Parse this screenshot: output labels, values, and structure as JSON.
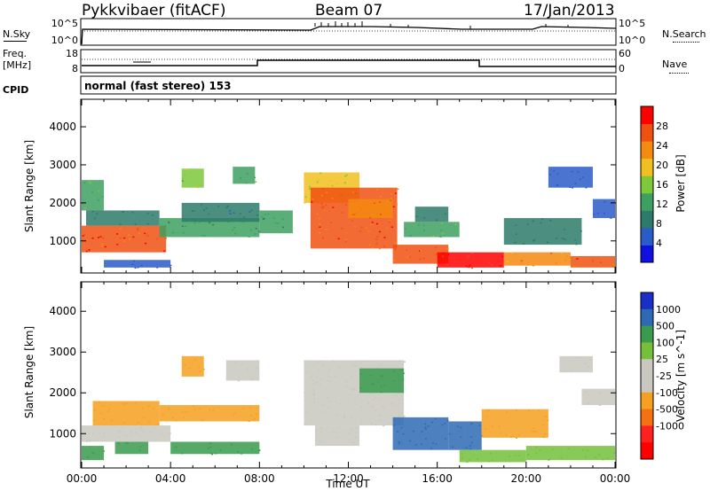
{
  "header": {
    "station": "Pykkvibaer (fitACF)",
    "beam": "Beam 07",
    "date": "17/Jan/2013"
  },
  "strip": {
    "nsky_label": "N.Sky",
    "nsearch_label": "N.Search",
    "freq_label": "Freq.",
    "freq_unit": "[MHz]",
    "nave_label": "Nave",
    "cpid_label": "CPID",
    "cpid_text": "normal (fast stereo) 153",
    "noise_ticks_left": [
      "10^5",
      "10^0"
    ],
    "noise_ticks_right": [
      "10^5",
      "10^0"
    ],
    "freq_ticks": [
      "18",
      "8"
    ],
    "nave_ticks": [
      "60",
      "0"
    ]
  },
  "colors": {
    "white_bg": "#ffffff",
    "power_scale": [
      "#1010e0",
      "#2a5cc8",
      "#2d7a6a",
      "#3ea060",
      "#7ec83a",
      "#f0c020",
      "#f58a10",
      "#f05010",
      "#ff0000"
    ],
    "velocity_scale": [
      "#1a2ec8",
      "#2e6ab4",
      "#3a9a4e",
      "#74c03a",
      "#c8c8c0",
      "#c8c8c0",
      "#f5a020",
      "#f57010",
      "#ff2020",
      "#ff0000"
    ]
  },
  "chart_data": [
    {
      "type": "heatmap",
      "name": "power",
      "ylabel": "Slant Range [km]",
      "xlabel": "",
      "xlim": [
        "00:00",
        "00:00"
      ],
      "ylim": [
        180,
        4700
      ],
      "yticks": [
        1000,
        2000,
        3000,
        4000
      ],
      "colorbar_label": "Power [dB]",
      "colorbar_ticks": [
        4,
        8,
        12,
        16,
        20,
        24,
        28
      ],
      "colorbar_range": [
        0,
        32
      ],
      "regions": [
        {
          "t0": 0.0,
          "t1": 3.8,
          "r0": 700,
          "r1": 1400,
          "v": 28
        },
        {
          "t0": 0.2,
          "t1": 3.5,
          "r0": 1400,
          "r1": 1800,
          "v": 10
        },
        {
          "t0": 0.0,
          "t1": 1.0,
          "r0": 1800,
          "r1": 2600,
          "v": 14
        },
        {
          "t0": 1.0,
          "t1": 4.0,
          "r0": 300,
          "r1": 500,
          "v": 6
        },
        {
          "t0": 3.5,
          "t1": 8.0,
          "r0": 1100,
          "r1": 1600,
          "v": 12
        },
        {
          "t0": 4.5,
          "t1": 8.0,
          "r0": 1500,
          "r1": 2000,
          "v": 8
        },
        {
          "t0": 4.5,
          "t1": 5.5,
          "r0": 2400,
          "r1": 2900,
          "v": 16
        },
        {
          "t0": 6.8,
          "t1": 7.8,
          "r0": 2500,
          "r1": 2950,
          "v": 14
        },
        {
          "t0": 8.0,
          "t1": 9.5,
          "r0": 1200,
          "r1": 1800,
          "v": 12
        },
        {
          "t0": 10.0,
          "t1": 12.5,
          "r0": 2000,
          "r1": 2800,
          "v": 18
        },
        {
          "t0": 10.3,
          "t1": 14.2,
          "r0": 800,
          "r1": 2400,
          "v": 26
        },
        {
          "t0": 12.0,
          "t1": 14.0,
          "r0": 1600,
          "r1": 2100,
          "v": 24
        },
        {
          "t0": 14.0,
          "t1": 16.5,
          "r0": 400,
          "r1": 900,
          "v": 28
        },
        {
          "t0": 14.5,
          "t1": 17.0,
          "r0": 1100,
          "r1": 1500,
          "v": 14
        },
        {
          "t0": 15.0,
          "t1": 16.5,
          "r0": 1500,
          "r1": 1900,
          "v": 10
        },
        {
          "t0": 16.0,
          "t1": 19.0,
          "r0": 300,
          "r1": 700,
          "v": 30
        },
        {
          "t0": 19.0,
          "t1": 22.0,
          "r0": 350,
          "r1": 700,
          "v": 22
        },
        {
          "t0": 19.0,
          "t1": 22.5,
          "r0": 900,
          "r1": 1600,
          "v": 10
        },
        {
          "t0": 21.0,
          "t1": 23.0,
          "r0": 2400,
          "r1": 2950,
          "v": 6
        },
        {
          "t0": 22.0,
          "t1": 24.0,
          "r0": 300,
          "r1": 600,
          "v": 26
        },
        {
          "t0": 23.0,
          "t1": 24.0,
          "r0": 1600,
          "r1": 2100,
          "v": 4
        }
      ]
    },
    {
      "type": "heatmap",
      "name": "velocity",
      "ylabel": "Slant Range [km]",
      "xlabel": "Time UT",
      "xticks": [
        "00:00",
        "04:00",
        "08:00",
        "12:00",
        "16:00",
        "20:00",
        "00:00"
      ],
      "ylim": [
        180,
        4700
      ],
      "yticks": [
        1000,
        2000,
        3000,
        4000
      ],
      "colorbar_label": "Velocity [m s^-1]",
      "colorbar_ticks": [
        1000,
        500,
        100,
        25,
        -25,
        -100,
        -500,
        -1000
      ],
      "regions": [
        {
          "t0": 0.0,
          "t1": 4.0,
          "r0": 800,
          "r1": 1200,
          "v": 0
        },
        {
          "t0": 0.0,
          "t1": 1.0,
          "r0": 350,
          "r1": 700,
          "v": 200
        },
        {
          "t0": 0.5,
          "t1": 3.5,
          "r0": 1200,
          "r1": 1800,
          "v": -150
        },
        {
          "t0": 1.5,
          "t1": 3.0,
          "r0": 500,
          "r1": 800,
          "v": 150
        },
        {
          "t0": 4.0,
          "t1": 8.0,
          "r0": 500,
          "r1": 800,
          "v": 150
        },
        {
          "t0": 3.5,
          "t1": 8.0,
          "r0": 1300,
          "r1": 1700,
          "v": -200
        },
        {
          "t0": 4.5,
          "t1": 5.5,
          "r0": 2400,
          "r1": 2900,
          "v": -150
        },
        {
          "t0": 6.5,
          "t1": 8.0,
          "r0": 2300,
          "r1": 2800,
          "v": 0
        },
        {
          "t0": 10.0,
          "t1": 14.5,
          "r0": 1200,
          "r1": 2800,
          "v": 0
        },
        {
          "t0": 10.5,
          "t1": 12.5,
          "r0": 700,
          "r1": 1200,
          "v": 0
        },
        {
          "t0": 14.0,
          "t1": 16.5,
          "r0": 600,
          "r1": 1400,
          "v": 800
        },
        {
          "t0": 12.5,
          "t1": 14.5,
          "r0": 2000,
          "r1": 2600,
          "v": 300
        },
        {
          "t0": 16.5,
          "t1": 18.0,
          "r0": 600,
          "r1": 1300,
          "v": 600
        },
        {
          "t0": 17.0,
          "t1": 20.0,
          "r0": 300,
          "r1": 600,
          "v": 60
        },
        {
          "t0": 18.0,
          "t1": 21.0,
          "r0": 900,
          "r1": 1600,
          "v": -150
        },
        {
          "t0": 20.0,
          "t1": 24.0,
          "r0": 350,
          "r1": 700,
          "v": 50
        },
        {
          "t0": 21.5,
          "t1": 23.0,
          "r0": 2500,
          "r1": 2900,
          "v": 0
        },
        {
          "t0": 22.5,
          "t1": 24.0,
          "r0": 1700,
          "r1": 2100,
          "v": -80
        }
      ]
    }
  ]
}
